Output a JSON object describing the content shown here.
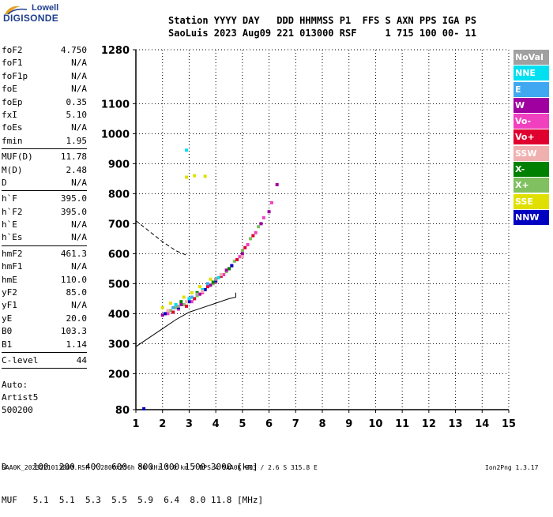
{
  "logo": {
    "top": "Lowell",
    "bottom": "DIGISONDE"
  },
  "header": {
    "line1": "Station YYYY DAY   DDD HHMMSS P1  FFS S AXN PPS IGA PS",
    "line2": "SaoLuis 2023 Aug09 221 013000 RSF     1 715 100 00- 11"
  },
  "params": {
    "group1": [
      {
        "label": "foF2",
        "value": "4.750"
      },
      {
        "label": "foF1",
        "value": "N/A"
      },
      {
        "label": "foF1p",
        "value": "N/A"
      },
      {
        "label": "foE",
        "value": "N/A"
      },
      {
        "label": "foEp",
        "value": "0.35"
      },
      {
        "label": "fxI",
        "value": "5.10"
      },
      {
        "label": "foEs",
        "value": "N/A"
      },
      {
        "label": "fmin",
        "value": "1.95"
      }
    ],
    "group2": [
      {
        "label": "MUF(D)",
        "value": "11.78"
      },
      {
        "label": "M(D)",
        "value": "2.48"
      },
      {
        "label": "D",
        "value": "N/A"
      }
    ],
    "group3": [
      {
        "label": "h`F",
        "value": "395.0"
      },
      {
        "label": "h`F2",
        "value": "395.0"
      },
      {
        "label": "h`E",
        "value": "N/A"
      },
      {
        "label": "h`Es",
        "value": "N/A"
      }
    ],
    "group4": [
      {
        "label": "hmF2",
        "value": "461.3"
      },
      {
        "label": "hmF1",
        "value": "N/A"
      },
      {
        "label": "hmE",
        "value": "110.0"
      },
      {
        "label": "yF2",
        "value": "85.0"
      },
      {
        "label": "yF1",
        "value": "N/A"
      },
      {
        "label": "yE",
        "value": "20.0"
      },
      {
        "label": "B0",
        "value": "103.3"
      },
      {
        "label": "B1",
        "value": "1.14"
      }
    ],
    "group5": [
      {
        "label": "C-level",
        "value": "44"
      }
    ]
  },
  "auto": {
    "line1": "Auto:",
    "line2": "Artist5",
    "line3": "500200"
  },
  "legend": [
    {
      "label": "NoVal",
      "color": "#a0a0a0"
    },
    {
      "label": "NNE",
      "color": "#00e0f0"
    },
    {
      "label": "E",
      "color": "#40a8f0"
    },
    {
      "label": "W",
      "color": "#a000a0"
    },
    {
      "label": "Vo-",
      "color": "#f040c0"
    },
    {
      "label": "Vo+",
      "color": "#e00030"
    },
    {
      "label": "SSW",
      "color": "#f0b0b0"
    },
    {
      "label": "X-",
      "color": "#008000"
    },
    {
      "label": "X+",
      "color": "#80c060"
    },
    {
      "label": "SSE",
      "color": "#e0e000"
    },
    {
      "label": "NNW",
      "color": "#0000c0"
    }
  ],
  "dm_table": {
    "d_line": "D     100  200  400  600  800 1000 1500 3000 [km]",
    "muf_line": "MUF   5.1  5.1  5.3  5.5  5.9  6.4  8.0 11.8 [MHz]"
  },
  "footer": {
    "left": "SAA0K_2023221013000.RSF / 280fx256h 50 kHz 5.0 km / DPS-4 SAA0K 903 / 2.6 S 315.8 E",
    "right": "Ion2Png 1.3.17"
  },
  "chart_data": {
    "type": "scatter",
    "title": "",
    "xlabel": "",
    "ylabel": "",
    "xlim": [
      1,
      15
    ],
    "ylim": [
      80,
      1280
    ],
    "x_ticks": [
      1,
      2,
      3,
      4,
      5,
      6,
      7,
      8,
      9,
      10,
      11,
      12,
      13,
      14,
      15
    ],
    "y_ticks": [
      80,
      200,
      300,
      400,
      500,
      600,
      700,
      800,
      900,
      1000,
      1100,
      1280
    ],
    "grid": true,
    "series": [
      {
        "name": "X+",
        "color": "#80c060",
        "x": [
          2.3,
          2.5,
          2.8,
          3.0,
          3.3,
          3.6,
          3.9,
          4.1,
          4.4,
          4.7,
          5.0,
          5.3,
          5.6
        ],
        "y": [
          410,
          420,
          430,
          445,
          460,
          480,
          500,
          520,
          540,
          575,
          610,
          650,
          690
        ]
      },
      {
        "name": "Vo-",
        "color": "#f040c0",
        "x": [
          2.2,
          2.6,
          3.1,
          3.5,
          4.0,
          4.3,
          4.6,
          4.9,
          5.2,
          5.5,
          5.8,
          6.1
        ],
        "y": [
          400,
          415,
          440,
          470,
          505,
          530,
          560,
          590,
          630,
          670,
          720,
          770
        ]
      },
      {
        "name": "Vo+",
        "color": "#e00030",
        "x": [
          2.4,
          2.9,
          3.2,
          3.7,
          4.2,
          4.5,
          4.8,
          5.1,
          5.4
        ],
        "y": [
          405,
          425,
          450,
          490,
          525,
          550,
          580,
          620,
          660
        ]
      },
      {
        "name": "W",
        "color": "#a000a0",
        "x": [
          2.0,
          2.7,
          3.4,
          3.8,
          4.4,
          5.0,
          5.7,
          6.0,
          6.3
        ],
        "y": [
          395,
          430,
          465,
          495,
          545,
          600,
          700,
          740,
          830
        ]
      },
      {
        "name": "NNW",
        "color": "#0000c0",
        "x": [
          2.1,
          2.6,
          3.0,
          3.6,
          4.0,
          4.6,
          1.3
        ],
        "y": [
          400,
          420,
          440,
          480,
          510,
          560,
          83
        ]
      },
      {
        "name": "SSE",
        "color": "#e0e000",
        "x": [
          2.0,
          2.3,
          2.8,
          3.1,
          3.4,
          3.8,
          2.9,
          3.2,
          3.6
        ],
        "y": [
          420,
          435,
          455,
          470,
          490,
          515,
          855,
          860,
          858
        ]
      },
      {
        "name": "NNE",
        "color": "#00e0f0",
        "x": [
          2.5,
          3.0,
          3.5,
          4.1,
          2.9
        ],
        "y": [
          430,
          450,
          480,
          520,
          945
        ]
      },
      {
        "name": "X-",
        "color": "#008000",
        "x": [
          2.7,
          3.3,
          3.9,
          4.5
        ],
        "y": [
          440,
          470,
          505,
          550
        ]
      },
      {
        "name": "SSW",
        "color": "#f0b0b0",
        "x": [
          2.2,
          2.9,
          3.5,
          4.2,
          5.0
        ],
        "y": [
          410,
          440,
          475,
          530,
          590
        ]
      },
      {
        "name": "E",
        "color": "#40a8f0",
        "x": [
          2.4,
          3.1,
          3.7
        ],
        "y": [
          420,
          455,
          500
        ]
      },
      {
        "name": "NoVal",
        "color": "#a0a0a0",
        "x": [
          2.6,
          3.3,
          4.0
        ],
        "y": [
          425,
          465,
          515
        ]
      }
    ],
    "profile_line": {
      "x": [
        1.0,
        1.5,
        2.0,
        2.5,
        3.0,
        3.5,
        4.0,
        4.5,
        4.75,
        4.75
      ],
      "y": [
        290,
        320,
        350,
        380,
        405,
        420,
        435,
        450,
        455,
        470
      ]
    },
    "dashed_line": {
      "x": [
        1.0,
        1.5,
        2.0,
        2.5,
        2.9
      ],
      "y": [
        710,
        675,
        640,
        610,
        595
      ]
    }
  }
}
